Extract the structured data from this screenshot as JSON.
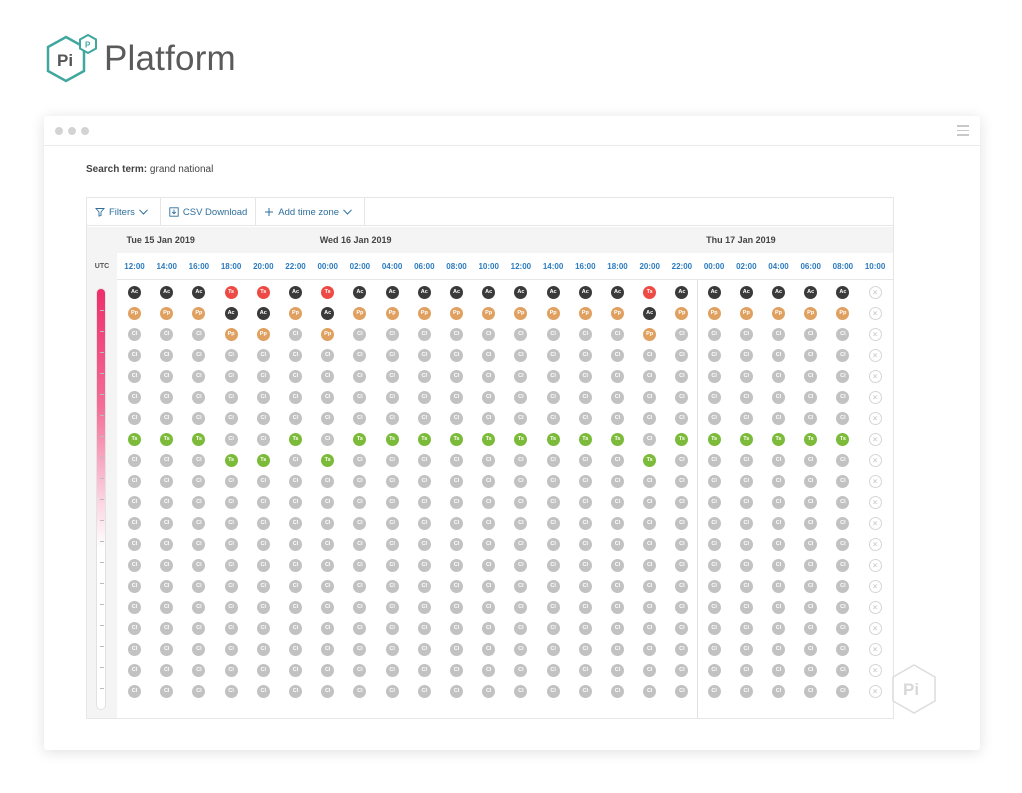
{
  "logo": {
    "mark_letters": "Pi",
    "mark_sup": "P",
    "text": "Platform"
  },
  "search": {
    "label": "Search term:",
    "value": "grand national"
  },
  "toolbar": {
    "filters": "Filters",
    "csv": "CSV Download",
    "add_tz": "Add time zone"
  },
  "dates": [
    {
      "label": "Tue 15 Jan 2019",
      "col": 0
    },
    {
      "label": "Wed 16 Jan 2019",
      "col": 6
    },
    {
      "label": "Thu 17 Jan 2019",
      "col": 18
    }
  ],
  "utc_label": "UTC",
  "times": [
    "12:00",
    "14:00",
    "16:00",
    "18:00",
    "20:00",
    "22:00",
    "00:00",
    "02:00",
    "04:00",
    "06:00",
    "08:00",
    "10:00",
    "12:00",
    "14:00",
    "16:00",
    "18:00",
    "20:00",
    "22:00",
    "00:00",
    "02:00",
    "04:00",
    "06:00",
    "08:00",
    "10:00"
  ],
  "badge_text": {
    "ac": "Ac",
    "ts": "Ts",
    "pp": "Pp",
    "ci": "Cl",
    "x": "×"
  },
  "colors": {
    "accent": "#2b7bbf",
    "ac": "#3a3a3a",
    "ts_red": "#ee4a45",
    "pp": "#e0a160",
    "ts_green": "#7cbb3a",
    "ci": "#c2c2c2",
    "bar_top": "#ee2e6b"
  },
  "grid": {
    "rows": 20,
    "columns": [
      [
        "ac",
        "pp",
        "ci",
        "ci",
        "ci",
        "ci",
        "ci",
        "ts-g",
        "ci",
        "ci",
        "ci",
        "ci",
        "ci",
        "ci",
        "ci",
        "ci",
        "ci",
        "ci",
        "ci",
        "ci"
      ],
      [
        "ac",
        "pp",
        "ci",
        "ci",
        "ci",
        "ci",
        "ci",
        "ts-g",
        "ci",
        "ci",
        "ci",
        "ci",
        "ci",
        "ci",
        "ci",
        "ci",
        "ci",
        "ci",
        "ci",
        "ci"
      ],
      [
        "ac",
        "pp",
        "ci",
        "ci",
        "ci",
        "ci",
        "ci",
        "ts-g",
        "ci",
        "ci",
        "ci",
        "ci",
        "ci",
        "ci",
        "ci",
        "ci",
        "ci",
        "ci",
        "ci",
        "ci"
      ],
      [
        "ts-r",
        "ac",
        "pp",
        "ci",
        "ci",
        "ci",
        "ci",
        "ci",
        "ts-g",
        "ci",
        "ci",
        "ci",
        "ci",
        "ci",
        "ci",
        "ci",
        "ci",
        "ci",
        "ci",
        "ci"
      ],
      [
        "ts-r",
        "ac",
        "pp",
        "ci",
        "ci",
        "ci",
        "ci",
        "ci",
        "ts-g",
        "ci",
        "ci",
        "ci",
        "ci",
        "ci",
        "ci",
        "ci",
        "ci",
        "ci",
        "ci",
        "ci"
      ],
      [
        "ac",
        "pp",
        "ci",
        "ci",
        "ci",
        "ci",
        "ci",
        "ts-g",
        "ci",
        "ci",
        "ci",
        "ci",
        "ci",
        "ci",
        "ci",
        "ci",
        "ci",
        "ci",
        "ci",
        "ci"
      ],
      [
        "ts-r",
        "ac",
        "pp",
        "ci",
        "ci",
        "ci",
        "ci",
        "ci",
        "ts-g",
        "ci",
        "ci",
        "ci",
        "ci",
        "ci",
        "ci",
        "ci",
        "ci",
        "ci",
        "ci",
        "ci"
      ],
      [
        "ac",
        "pp",
        "ci",
        "ci",
        "ci",
        "ci",
        "ci",
        "ts-g",
        "ci",
        "ci",
        "ci",
        "ci",
        "ci",
        "ci",
        "ci",
        "ci",
        "ci",
        "ci",
        "ci",
        "ci"
      ],
      [
        "ac",
        "pp",
        "ci",
        "ci",
        "ci",
        "ci",
        "ci",
        "ts-g",
        "ci",
        "ci",
        "ci",
        "ci",
        "ci",
        "ci",
        "ci",
        "ci",
        "ci",
        "ci",
        "ci",
        "ci"
      ],
      [
        "ac",
        "pp",
        "ci",
        "ci",
        "ci",
        "ci",
        "ci",
        "ts-g",
        "ci",
        "ci",
        "ci",
        "ci",
        "ci",
        "ci",
        "ci",
        "ci",
        "ci",
        "ci",
        "ci",
        "ci"
      ],
      [
        "ac",
        "pp",
        "ci",
        "ci",
        "ci",
        "ci",
        "ci",
        "ts-g",
        "ci",
        "ci",
        "ci",
        "ci",
        "ci",
        "ci",
        "ci",
        "ci",
        "ci",
        "ci",
        "ci",
        "ci"
      ],
      [
        "ac",
        "pp",
        "ci",
        "ci",
        "ci",
        "ci",
        "ci",
        "ts-g",
        "ci",
        "ci",
        "ci",
        "ci",
        "ci",
        "ci",
        "ci",
        "ci",
        "ci",
        "ci",
        "ci",
        "ci"
      ],
      [
        "ac",
        "pp",
        "ci",
        "ci",
        "ci",
        "ci",
        "ci",
        "ts-g",
        "ci",
        "ci",
        "ci",
        "ci",
        "ci",
        "ci",
        "ci",
        "ci",
        "ci",
        "ci",
        "ci",
        "ci"
      ],
      [
        "ac",
        "pp",
        "ci",
        "ci",
        "ci",
        "ci",
        "ci",
        "ts-g",
        "ci",
        "ci",
        "ci",
        "ci",
        "ci",
        "ci",
        "ci",
        "ci",
        "ci",
        "ci",
        "ci",
        "ci"
      ],
      [
        "ac",
        "pp",
        "ci",
        "ci",
        "ci",
        "ci",
        "ci",
        "ts-g",
        "ci",
        "ci",
        "ci",
        "ci",
        "ci",
        "ci",
        "ci",
        "ci",
        "ci",
        "ci",
        "ci",
        "ci"
      ],
      [
        "ac",
        "pp",
        "ci",
        "ci",
        "ci",
        "ci",
        "ci",
        "ts-g",
        "ci",
        "ci",
        "ci",
        "ci",
        "ci",
        "ci",
        "ci",
        "ci",
        "ci",
        "ci",
        "ci",
        "ci"
      ],
      [
        "ts-r",
        "ac",
        "pp",
        "ci",
        "ci",
        "ci",
        "ci",
        "ci",
        "ts-g",
        "ci",
        "ci",
        "ci",
        "ci",
        "ci",
        "ci",
        "ci",
        "ci",
        "ci",
        "ci",
        "ci"
      ],
      [
        "ac",
        "pp",
        "ci",
        "ci",
        "ci",
        "ci",
        "ci",
        "ts-g",
        "ci",
        "ci",
        "ci",
        "ci",
        "ci",
        "ci",
        "ci",
        "ci",
        "ci",
        "ci",
        "ci",
        "ci"
      ],
      [
        "ac",
        "pp",
        "ci",
        "ci",
        "ci",
        "ci",
        "ci",
        "ts-g",
        "ci",
        "ci",
        "ci",
        "ci",
        "ci",
        "ci",
        "ci",
        "ci",
        "ci",
        "ci",
        "ci",
        "ci"
      ],
      [
        "ac",
        "pp",
        "ci",
        "ci",
        "ci",
        "ci",
        "ci",
        "ts-g",
        "ci",
        "ci",
        "ci",
        "ci",
        "ci",
        "ci",
        "ci",
        "ci",
        "ci",
        "ci",
        "ci",
        "ci"
      ],
      [
        "ac",
        "pp",
        "ci",
        "ci",
        "ci",
        "ci",
        "ci",
        "ts-g",
        "ci",
        "ci",
        "ci",
        "ci",
        "ci",
        "ci",
        "ci",
        "ci",
        "ci",
        "ci",
        "ci",
        "ci"
      ],
      [
        "ac",
        "pp",
        "ci",
        "ci",
        "ci",
        "ci",
        "ci",
        "ts-g",
        "ci",
        "ci",
        "ci",
        "ci",
        "ci",
        "ci",
        "ci",
        "ci",
        "ci",
        "ci",
        "ci",
        "ci"
      ],
      [
        "ac",
        "pp",
        "ci",
        "ci",
        "ci",
        "ci",
        "ci",
        "ts-g",
        "ci",
        "ci",
        "ci",
        "ci",
        "ci",
        "ci",
        "ci",
        "ci",
        "ci",
        "ci",
        "ci",
        "ci"
      ],
      [
        "x",
        "x",
        "x",
        "x",
        "x",
        "x",
        "x",
        "x",
        "x",
        "x",
        "x",
        "x",
        "x",
        "x",
        "x",
        "x",
        "x",
        "x",
        "x",
        "x"
      ]
    ]
  },
  "intensity_bar": {
    "level": 0.62
  }
}
